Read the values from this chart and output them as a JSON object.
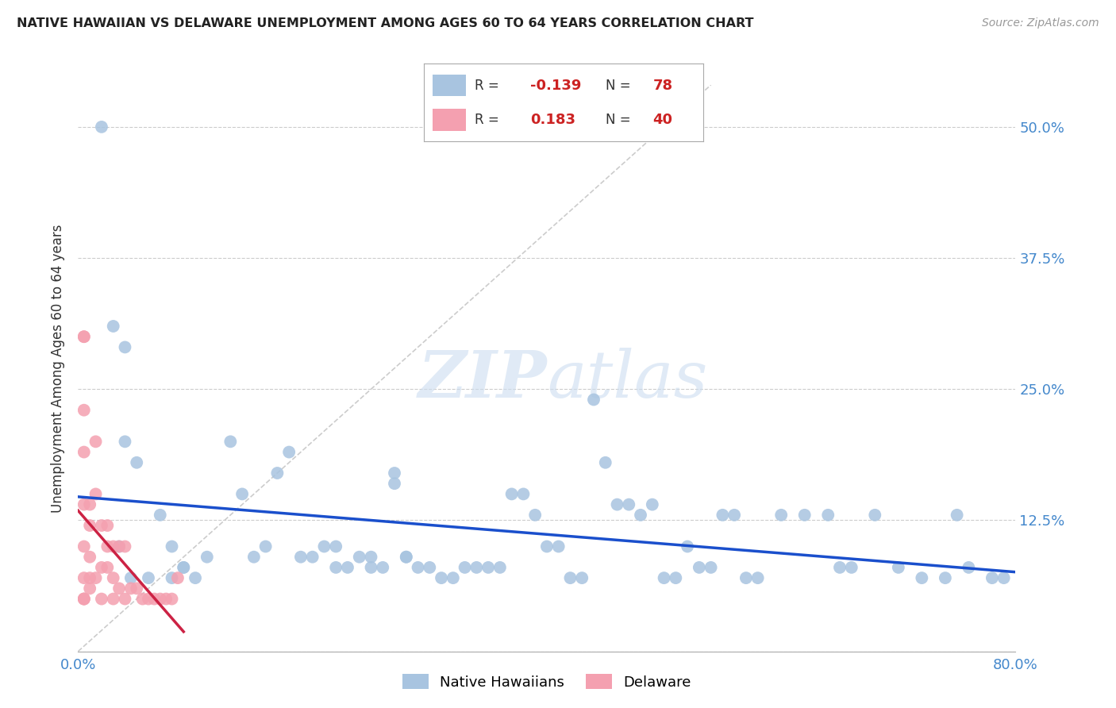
{
  "title": "NATIVE HAWAIIAN VS DELAWARE UNEMPLOYMENT AMONG AGES 60 TO 64 YEARS CORRELATION CHART",
  "source": "Source: ZipAtlas.com",
  "ylabel": "Unemployment Among Ages 60 to 64 years",
  "xlim": [
    0.0,
    0.8
  ],
  "ylim": [
    0.0,
    0.54
  ],
  "xticks": [
    0.0,
    0.8
  ],
  "xticklabels": [
    "0.0%",
    "80.0%"
  ],
  "yticks": [
    0.0,
    0.125,
    0.25,
    0.375,
    0.5
  ],
  "yticklabels": [
    "",
    "12.5%",
    "25.0%",
    "37.5%",
    "50.0%"
  ],
  "grid_color": "#cccccc",
  "background_color": "#ffffff",
  "blue_color": "#a8c4e0",
  "pink_color": "#f4a0b0",
  "blue_line_color": "#1a4fcc",
  "pink_line_color": "#cc2244",
  "ref_line_color": "#cccccc",
  "tick_color": "#4488cc",
  "title_color": "#222222",
  "axis_label_color": "#333333",
  "native_hawaiian_x": [
    0.02,
    0.03,
    0.04,
    0.04,
    0.035,
    0.05,
    0.07,
    0.08,
    0.09,
    0.1,
    0.11,
    0.13,
    0.14,
    0.15,
    0.16,
    0.17,
    0.18,
    0.19,
    0.2,
    0.21,
    0.22,
    0.22,
    0.23,
    0.24,
    0.25,
    0.25,
    0.26,
    0.27,
    0.27,
    0.28,
    0.28,
    0.29,
    0.3,
    0.31,
    0.32,
    0.33,
    0.34,
    0.35,
    0.36,
    0.37,
    0.38,
    0.39,
    0.4,
    0.41,
    0.42,
    0.43,
    0.44,
    0.45,
    0.46,
    0.47,
    0.48,
    0.49,
    0.5,
    0.51,
    0.52,
    0.53,
    0.54,
    0.55,
    0.56,
    0.57,
    0.58,
    0.6,
    0.62,
    0.64,
    0.65,
    0.66,
    0.68,
    0.7,
    0.72,
    0.74,
    0.75,
    0.76,
    0.78,
    0.79,
    0.08,
    0.06,
    0.045,
    0.09
  ],
  "native_hawaiian_y": [
    0.5,
    0.31,
    0.29,
    0.2,
    0.1,
    0.18,
    0.13,
    0.1,
    0.08,
    0.07,
    0.09,
    0.2,
    0.15,
    0.09,
    0.1,
    0.17,
    0.19,
    0.09,
    0.09,
    0.1,
    0.1,
    0.08,
    0.08,
    0.09,
    0.09,
    0.08,
    0.08,
    0.17,
    0.16,
    0.09,
    0.09,
    0.08,
    0.08,
    0.07,
    0.07,
    0.08,
    0.08,
    0.08,
    0.08,
    0.15,
    0.15,
    0.13,
    0.1,
    0.1,
    0.07,
    0.07,
    0.24,
    0.18,
    0.14,
    0.14,
    0.13,
    0.14,
    0.07,
    0.07,
    0.1,
    0.08,
    0.08,
    0.13,
    0.13,
    0.07,
    0.07,
    0.13,
    0.13,
    0.13,
    0.08,
    0.08,
    0.13,
    0.08,
    0.07,
    0.07,
    0.13,
    0.08,
    0.07,
    0.07,
    0.07,
    0.07,
    0.07,
    0.08
  ],
  "delaware_x": [
    0.005,
    0.005,
    0.005,
    0.005,
    0.005,
    0.005,
    0.005,
    0.01,
    0.01,
    0.01,
    0.01,
    0.01,
    0.015,
    0.015,
    0.02,
    0.02,
    0.02,
    0.025,
    0.025,
    0.03,
    0.03,
    0.03,
    0.035,
    0.035,
    0.04,
    0.04,
    0.045,
    0.05,
    0.055,
    0.06,
    0.065,
    0.07,
    0.075,
    0.08,
    0.085,
    0.015,
    0.025,
    0.005,
    0.005,
    0.005
  ],
  "delaware_y": [
    0.3,
    0.3,
    0.23,
    0.19,
    0.14,
    0.1,
    0.07,
    0.14,
    0.12,
    0.09,
    0.07,
    0.06,
    0.2,
    0.15,
    0.12,
    0.08,
    0.05,
    0.1,
    0.08,
    0.1,
    0.07,
    0.05,
    0.1,
    0.06,
    0.1,
    0.05,
    0.06,
    0.06,
    0.05,
    0.05,
    0.05,
    0.05,
    0.05,
    0.05,
    0.07,
    0.07,
    0.12,
    0.05,
    0.05,
    0.05
  ]
}
